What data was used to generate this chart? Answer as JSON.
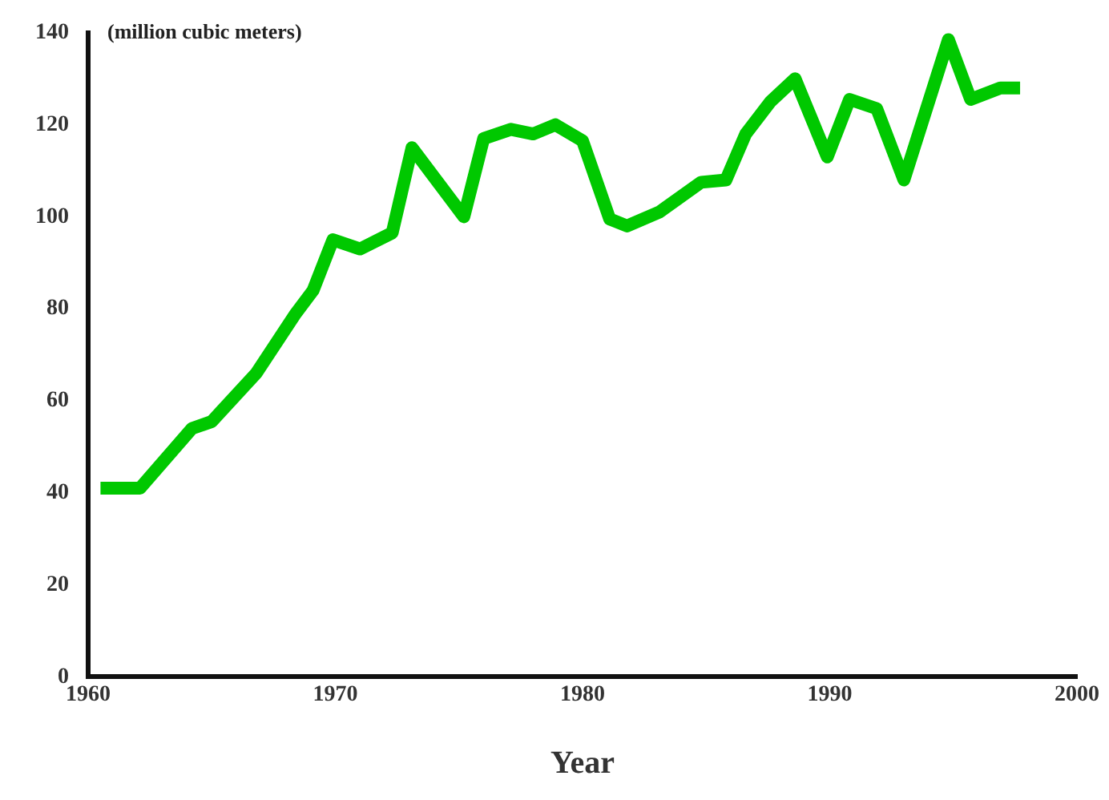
{
  "chart_data": {
    "type": "line",
    "xlabel": "Year",
    "ylabel": "(million cubic meters)",
    "xlim": [
      1960,
      2000
    ],
    "xticks": [
      1960,
      1970,
      1980,
      1990,
      2000
    ],
    "ylim": [
      0,
      140
    ],
    "yticks": [
      0,
      20,
      40,
      60,
      80,
      100,
      120,
      140
    ],
    "grid": false,
    "legend": false,
    "marker": "none",
    "line_style": "solid",
    "series": [
      {
        "color": "#00c800",
        "x": [
          1960.5,
          1962.1,
          1964.2,
          1965,
          1966.8,
          1968.4,
          1969.1,
          1969.9,
          1971,
          1972.3,
          1973.1,
          1975.2,
          1976,
          1977.1,
          1978,
          1978.9,
          1980,
          1981.1,
          1981.8,
          1983.1,
          1984.8,
          1985.8,
          1986.6,
          1987.6,
          1988.6,
          1989.9,
          1990.8,
          1991.9,
          1993,
          1994.8,
          1995.7,
          1996.9,
          1997.7
        ],
        "values": [
          41,
          41,
          54,
          55.5,
          66,
          79,
          84,
          95,
          93,
          96.5,
          115,
          100,
          117,
          119,
          118,
          120,
          116.5,
          99.5,
          98,
          101,
          107.5,
          108,
          118,
          125,
          130,
          113,
          125.5,
          123.5,
          108,
          138.5,
          125.5,
          128,
          128
        ]
      }
    ]
  }
}
